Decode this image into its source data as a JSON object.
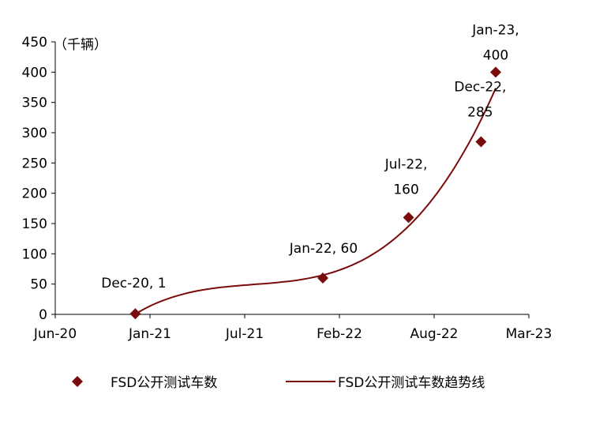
{
  "chart_data": {
    "type": "scatter",
    "unit_label": "（千辆）",
    "xaxis": {
      "type": "date",
      "min": "2020-06-15",
      "max": "2023-03-12",
      "ticks": [
        {
          "date": "2020-06-15",
          "label": "Jun-20"
        },
        {
          "date": "2021-01-01",
          "label": "Jan-21"
        },
        {
          "date": "2021-07-20",
          "label": "Jul-21"
        },
        {
          "date": "2022-02-05",
          "label": "Feb-22"
        },
        {
          "date": "2022-08-24",
          "label": "Aug-22"
        },
        {
          "date": "2023-03-12",
          "label": "Mar-23"
        }
      ]
    },
    "yaxis": {
      "min": 0,
      "max": 450,
      "ticks": [
        0,
        50,
        100,
        150,
        200,
        250,
        300,
        350,
        400,
        450
      ]
    },
    "grid": false,
    "series": [
      {
        "name": "FSD公开测试车数",
        "marker": "diamond",
        "color": "#7b0c0c",
        "points": [
          {
            "x": "2020-12-01",
            "y": 1,
            "label": [
              "Dec-20, 1"
            ]
          },
          {
            "x": "2022-01-01",
            "y": 60,
            "label": [
              "Jan-22, 60"
            ]
          },
          {
            "x": "2022-07-01",
            "y": 160,
            "label": [
              "Jul-22,",
              "160"
            ]
          },
          {
            "x": "2022-12-01",
            "y": 285,
            "label": [
              "Dec-22,",
              "285"
            ]
          },
          {
            "x": "2023-01-01",
            "y": 400,
            "label": [
              "Jan-23,",
              "400"
            ]
          }
        ]
      },
      {
        "name": "FSD公开测试车数趋势线",
        "type": "trendline-polynomial-3",
        "color": "#7b0c0c"
      }
    ],
    "legend": {
      "placement": "bottom"
    }
  }
}
